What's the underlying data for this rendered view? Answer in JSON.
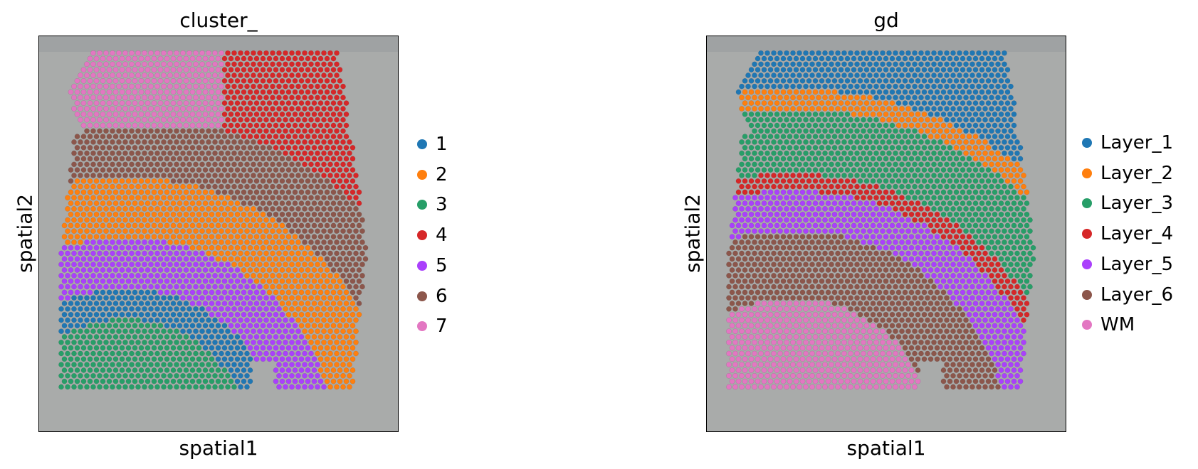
{
  "figure": {
    "panels": [
      {
        "title": "cluster_",
        "xlabel": "spatial1",
        "ylabel": "spatial2",
        "legend": [
          {
            "label": "1",
            "color": "#1f77b4"
          },
          {
            "label": "2",
            "color": "#ff7f0e"
          },
          {
            "label": "3",
            "color": "#279e68"
          },
          {
            "label": "4",
            "color": "#d62728"
          },
          {
            "label": "5",
            "color": "#aa40fc"
          },
          {
            "label": "6",
            "color": "#8c564b"
          },
          {
            "label": "7",
            "color": "#e377c2"
          }
        ]
      },
      {
        "title": "gd",
        "xlabel": "spatial1",
        "ylabel": "spatial2",
        "legend": [
          {
            "label": "Layer_1",
            "color": "#1f77b4"
          },
          {
            "label": "Layer_2",
            "color": "#ff7f0e"
          },
          {
            "label": "Layer_3",
            "color": "#279e68"
          },
          {
            "label": "Layer_4",
            "color": "#d62728"
          },
          {
            "label": "Layer_5",
            "color": "#aa40fc"
          },
          {
            "label": "Layer_6",
            "color": "#8c564b"
          },
          {
            "label": "WM",
            "color": "#e377c2"
          }
        ]
      }
    ]
  },
  "chart_data": [
    {
      "type": "scatter",
      "title": "cluster_",
      "xlabel": "spatial1",
      "ylabel": "spatial2",
      "grid": false,
      "legend_position": "right",
      "background": "tissue histology image",
      "series": [
        {
          "name": "1",
          "color": "#1f77b4"
        },
        {
          "name": "2",
          "color": "#ff7f0e"
        },
        {
          "name": "3",
          "color": "#279e68"
        },
        {
          "name": "4",
          "color": "#d62728"
        },
        {
          "name": "5",
          "color": "#aa40fc"
        },
        {
          "name": "6",
          "color": "#8c564b"
        },
        {
          "name": "7",
          "color": "#e377c2"
        }
      ]
    },
    {
      "type": "scatter",
      "title": "gd",
      "xlabel": "spatial1",
      "ylabel": "spatial2",
      "grid": false,
      "legend_position": "right",
      "background": "tissue histology image",
      "series": [
        {
          "name": "Layer_1",
          "color": "#1f77b4"
        },
        {
          "name": "Layer_2",
          "color": "#ff7f0e"
        },
        {
          "name": "Layer_3",
          "color": "#279e68"
        },
        {
          "name": "Layer_4",
          "color": "#d62728"
        },
        {
          "name": "Layer_5",
          "color": "#aa40fc"
        },
        {
          "name": "Layer_6",
          "color": "#8c564b"
        },
        {
          "name": "WM",
          "color": "#e377c2"
        }
      ]
    }
  ]
}
